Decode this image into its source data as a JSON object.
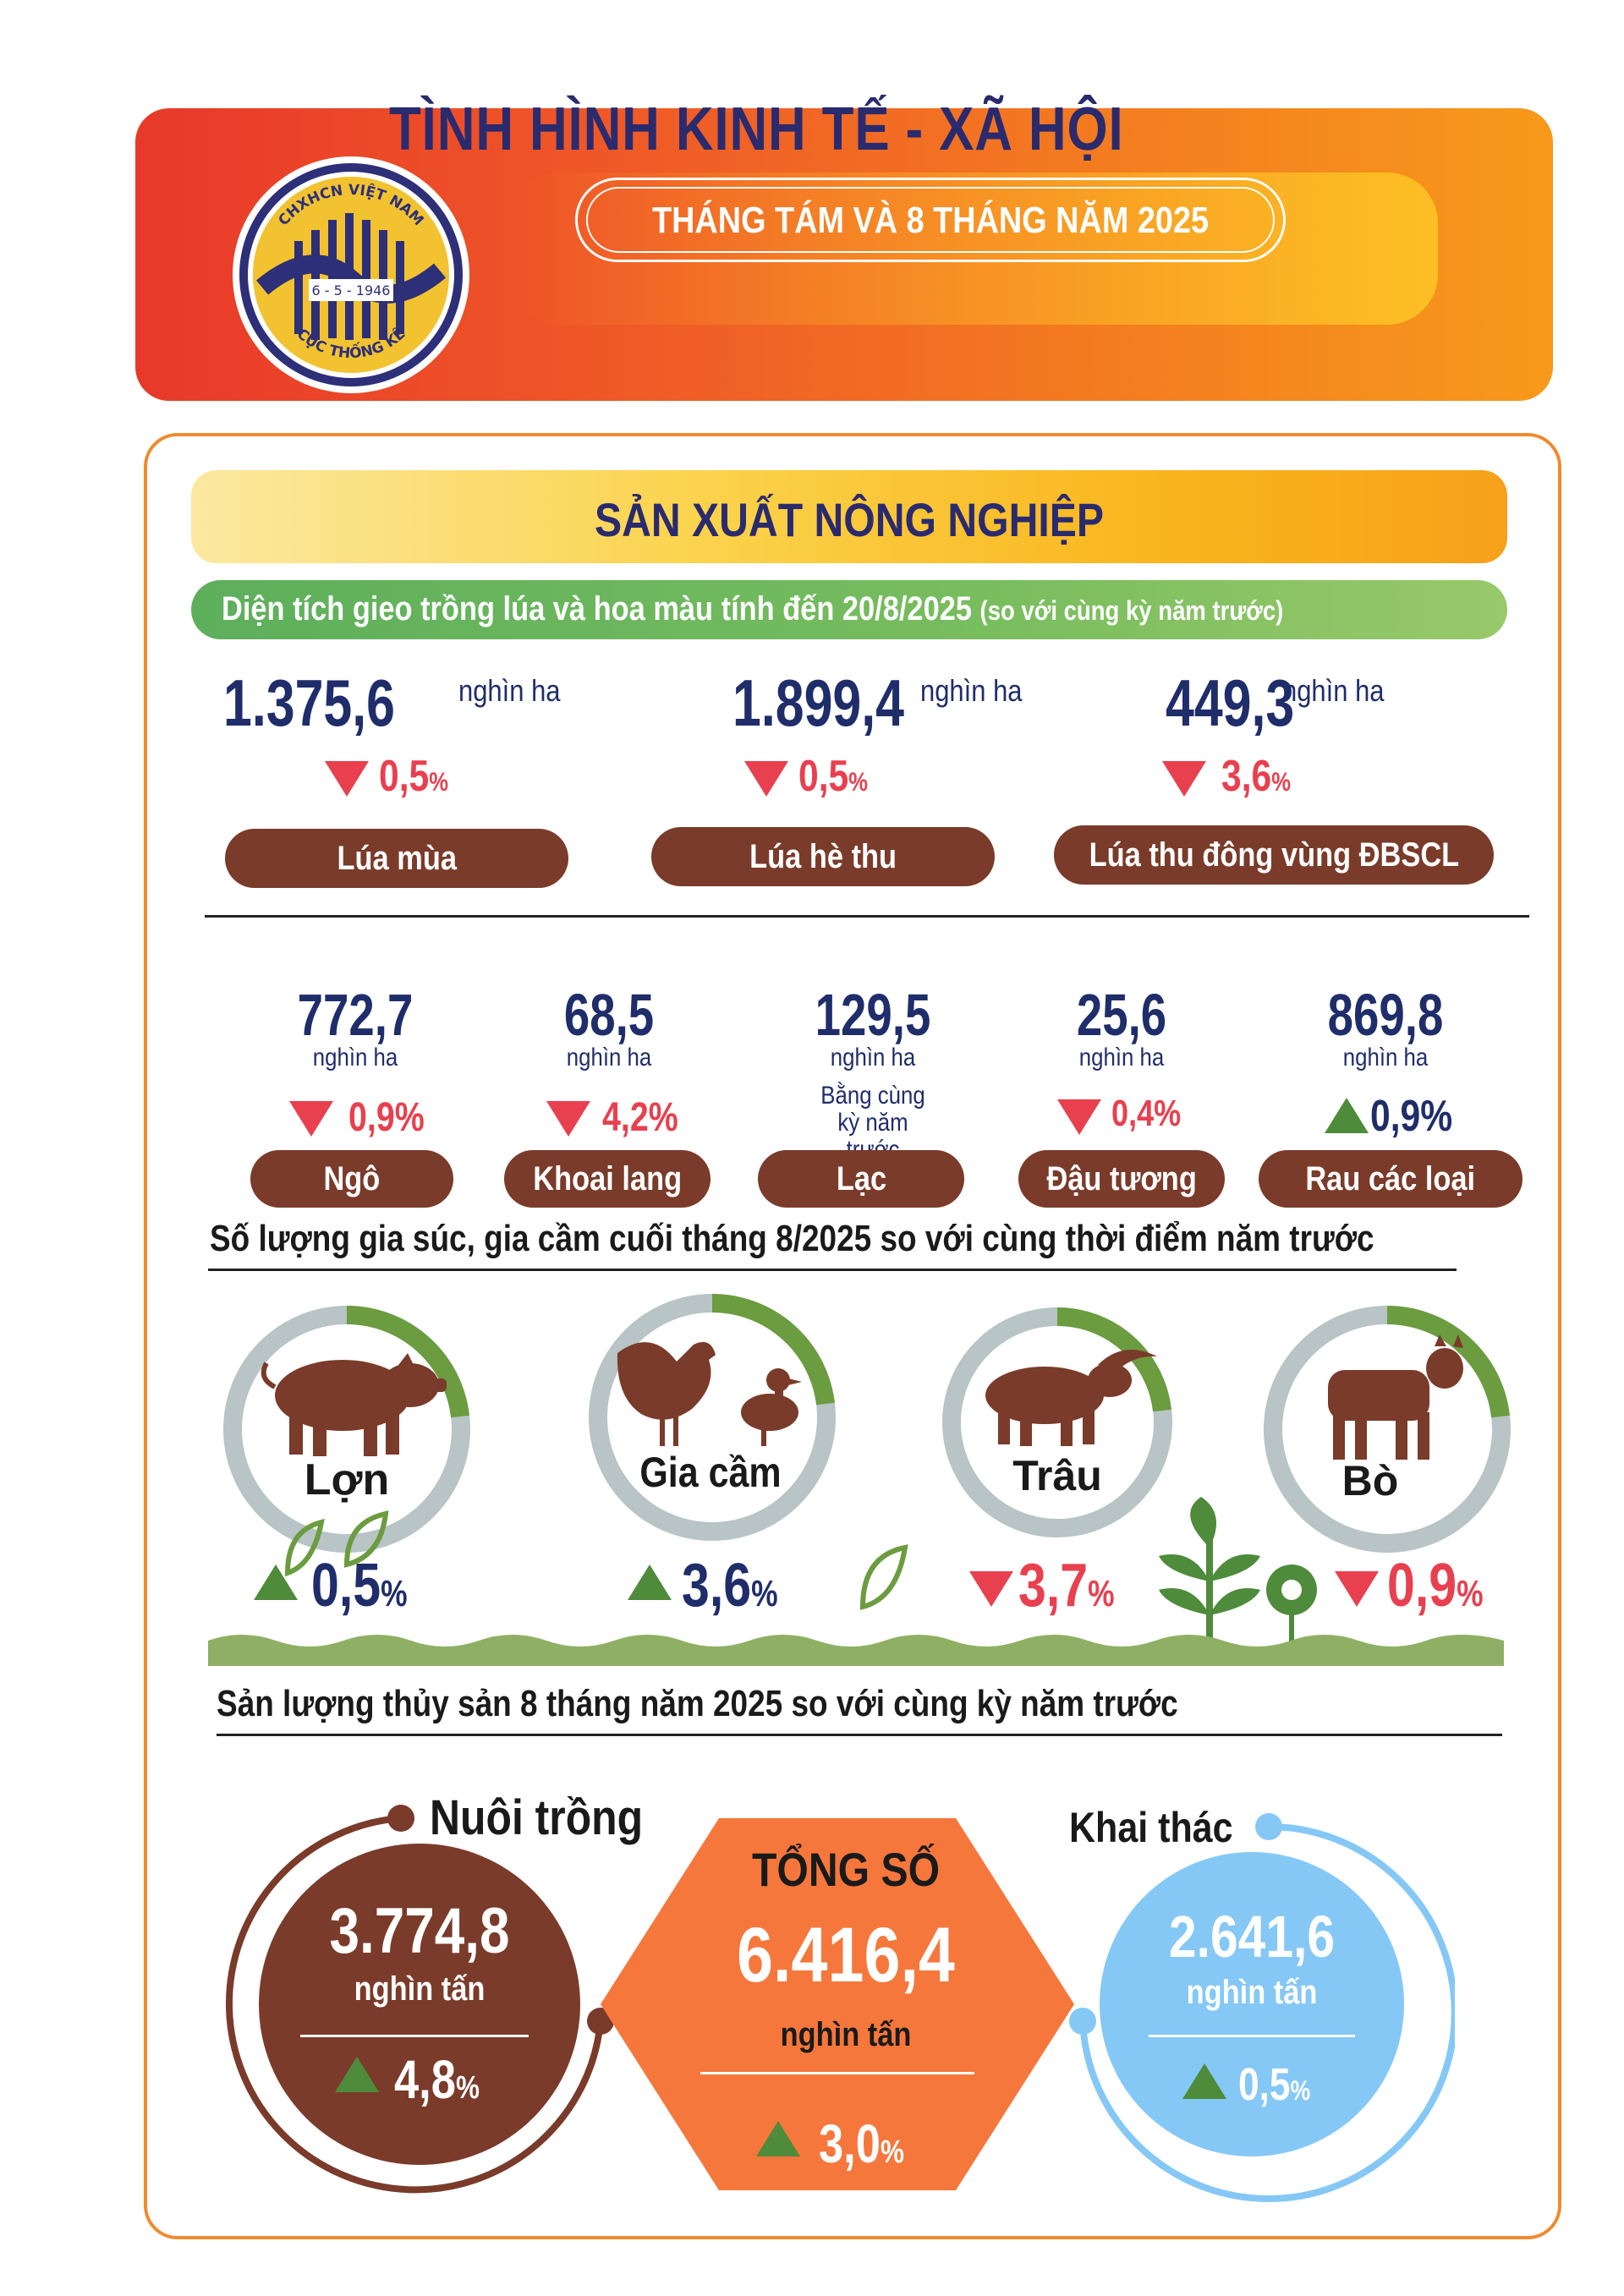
{
  "header": {
    "logo_top": "CHXHCN VIỆT NAM",
    "logo_date": "6 - 5 - 1946",
    "logo_bottom": "CỤC THỐNG KÊ",
    "title": "TÌNH HÌNH KINH TẾ - XÃ HỘI",
    "subtitle": "THÁNG TÁM VÀ 8 THÁNG NĂM 2025"
  },
  "section": {
    "title": "SẢN XUẤT NÔNG NGHIỆP"
  },
  "crop_area": {
    "heading": "Diện tích gieo trồng lúa và hoa màu tính đến 20/8/2025",
    "heading_note": "(so với cùng kỳ năm trước)",
    "rice": [
      {
        "value": "1.375,6",
        "unit": "nghìn ha",
        "change": "0,5",
        "pct": "%",
        "direction": "down",
        "label": "Lúa mùa"
      },
      {
        "value": "1.899,4",
        "unit": "nghìn ha",
        "change": "0,5",
        "pct": "%",
        "direction": "down",
        "label": "Lúa hè thu"
      },
      {
        "value": "449,3",
        "unit": "nghìn ha",
        "change": "3,6",
        "pct": "%",
        "direction": "down",
        "label": "Lúa thu đông vùng ĐBSCL"
      }
    ],
    "crops": [
      {
        "value": "772,7",
        "unit": "nghìn ha",
        "change": "0,9%",
        "direction": "down",
        "label": "Ngô"
      },
      {
        "value": "68,5",
        "unit": "nghìn ha",
        "change": "4,2%",
        "direction": "down",
        "label": "Khoai lang"
      },
      {
        "value": "129,5",
        "unit": "nghìn ha",
        "note": "Bằng cùng kỳ năm trước",
        "direction": "equal",
        "label": "Lạc"
      },
      {
        "value": "25,6",
        "unit": "nghìn ha",
        "change": "0,4%",
        "direction": "down",
        "label": "Đậu tương"
      },
      {
        "value": "869,8",
        "unit": "nghìn ha",
        "change": "0,9%",
        "direction": "up",
        "label": "Rau các loại"
      }
    ]
  },
  "livestock": {
    "heading": "Số lượng gia súc, gia cầm cuối tháng 8/2025 so với cùng thời điểm năm trước",
    "items": [
      {
        "label": "Lợn",
        "change": "0,5",
        "pct": "%",
        "direction": "up",
        "icon": "pig-icon"
      },
      {
        "label": "Gia cầm",
        "change": "3,6",
        "pct": "%",
        "direction": "up",
        "icon": "chicken-duck-icon"
      },
      {
        "label": "Trâu",
        "change": "3,7",
        "pct": "%",
        "direction": "down",
        "icon": "buffalo-icon"
      },
      {
        "label": "Bò",
        "change": "0,9",
        "pct": "%",
        "direction": "down",
        "icon": "cow-icon"
      }
    ]
  },
  "fishery": {
    "heading": "Sản lượng thủy sản 8 tháng năm 2025 so với cùng kỳ năm trước",
    "aquaculture": {
      "label": "Nuôi trồng",
      "value": "3.774,8",
      "unit": "nghìn tấn",
      "change": "4,8",
      "pct": "%",
      "direction": "up"
    },
    "total": {
      "label": "TỔNG SỐ",
      "value": "6.416,4",
      "unit": "nghìn tấn",
      "change": "3,0",
      "pct": "%",
      "direction": "up"
    },
    "capture": {
      "label": "Khai thác",
      "value": "2.641,6",
      "unit": "nghìn tấn",
      "change": "0,5",
      "pct": "%",
      "direction": "up"
    }
  },
  "colors": {
    "navy": "#1f2d6b",
    "brown": "#7a3b2a",
    "red": "#e8404f",
    "green": "#4e8b3a",
    "orange": "#f6773c",
    "light_blue": "#85c8f5"
  }
}
